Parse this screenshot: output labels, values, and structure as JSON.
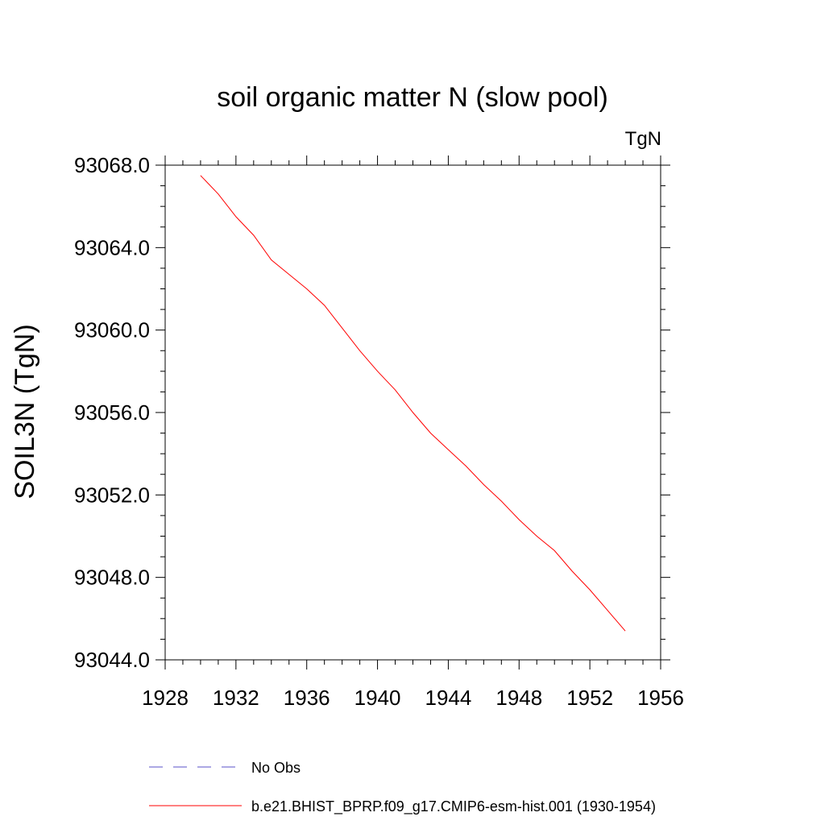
{
  "chart_data": {
    "type": "line",
    "title": "soil organic matter N (slow pool)",
    "units": "TgN",
    "ylabel": "SOIL3N  (TgN)",
    "xlabel": "",
    "xlim": [
      1928,
      1956
    ],
    "ylim": [
      93044.0,
      93068.0
    ],
    "x_ticks": [
      "1928",
      "1932",
      "1936",
      "1940",
      "1944",
      "1948",
      "1952",
      "1956"
    ],
    "y_ticks": [
      "93044.0",
      "93048.0",
      "93052.0",
      "93056.0",
      "93060.0",
      "93064.0",
      "93068.0"
    ],
    "grid": false,
    "series": [
      {
        "name": "b.e21.BHIST_BPRP.f09_g17.CMIP6-esm-hist.001 (1930-1954)",
        "color": "#ff0000",
        "x": [
          1930,
          1931,
          1932,
          1933,
          1934,
          1935,
          1936,
          1937,
          1938,
          1939,
          1940,
          1941,
          1942,
          1943,
          1944,
          1945,
          1946,
          1947,
          1948,
          1949,
          1950,
          1951,
          1952,
          1953,
          1954
        ],
        "y": [
          93067.5,
          93066.6,
          93065.5,
          93064.6,
          93063.4,
          93062.7,
          93062.0,
          93061.2,
          93060.1,
          93059.0,
          93058.0,
          93057.1,
          93056.0,
          93055.0,
          93054.2,
          93053.4,
          93052.5,
          93051.7,
          93050.8,
          93050.0,
          93049.3,
          93048.3,
          93047.4,
          93046.4,
          93045.4
        ]
      }
    ],
    "legend": [
      {
        "label": "No Obs",
        "color": "#5a52c8",
        "style": "dashed"
      },
      {
        "label": "b.e21.BHIST_BPRP.f09_g17.CMIP6-esm-hist.001 (1930-1954)",
        "color": "#ff0000",
        "style": "solid"
      }
    ],
    "legend_position": "bottom"
  }
}
